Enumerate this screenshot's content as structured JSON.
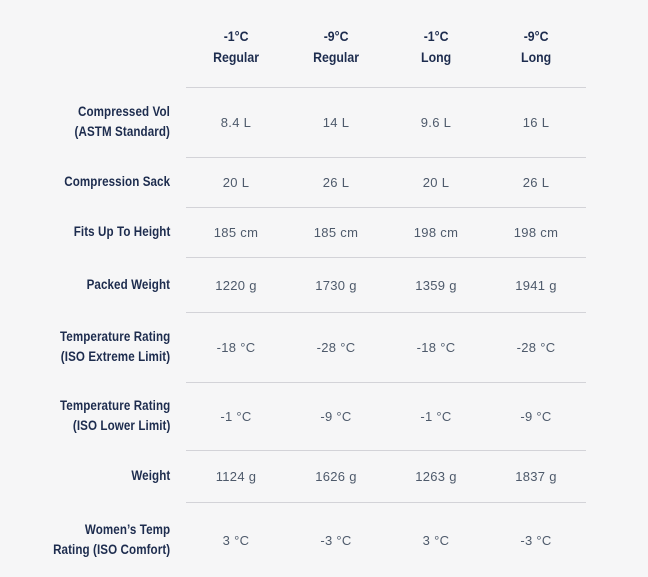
{
  "table": {
    "columns": [
      {
        "temp": "-1°C",
        "fit": "Regular"
      },
      {
        "temp": "-9°C",
        "fit": "Regular"
      },
      {
        "temp": "-1°C",
        "fit": "Long"
      },
      {
        "temp": "-9°C",
        "fit": "Long"
      }
    ],
    "rows": [
      {
        "label_lines": [
          "Compressed Vol",
          "(ASTM Standard)"
        ],
        "values": [
          "8.4 L",
          "14 L",
          "9.6 L",
          "16 L"
        ]
      },
      {
        "label_lines": [
          "Compression Sack"
        ],
        "values": [
          "20 L",
          "26 L",
          "20 L",
          "26 L"
        ]
      },
      {
        "label_lines": [
          "Fits Up To Height"
        ],
        "values": [
          "185 cm",
          "185 cm",
          "198 cm",
          "198 cm"
        ]
      },
      {
        "label_lines": [
          "Packed Weight"
        ],
        "values": [
          "1220 g",
          "1730 g",
          "1359 g",
          "1941 g"
        ]
      },
      {
        "label_lines": [
          "Temperature Rating",
          "(ISO Extreme Limit)"
        ],
        "values": [
          "-18 °C",
          "-28 °C",
          "-18 °C",
          "-28 °C"
        ]
      },
      {
        "label_lines": [
          "Temperature Rating",
          "(ISO Lower Limit)"
        ],
        "values": [
          "-1 °C",
          "-9 °C",
          "-1 °C",
          "-9 °C"
        ]
      },
      {
        "label_lines": [
          "Weight"
        ],
        "values": [
          "1124 g",
          "1626 g",
          "1263 g",
          "1837 g"
        ]
      },
      {
        "label_lines": [
          "Women’s Temp",
          "Rating (ISO Comfort)"
        ],
        "values": [
          "3 °C",
          "-3 °C",
          "3 °C",
          "-3 °C"
        ]
      }
    ]
  },
  "colors": {
    "background": "#f6f6f7",
    "heading_text": "#1d2c4e",
    "value_text": "#4e5a6b",
    "divider": "#d3d3d8"
  }
}
